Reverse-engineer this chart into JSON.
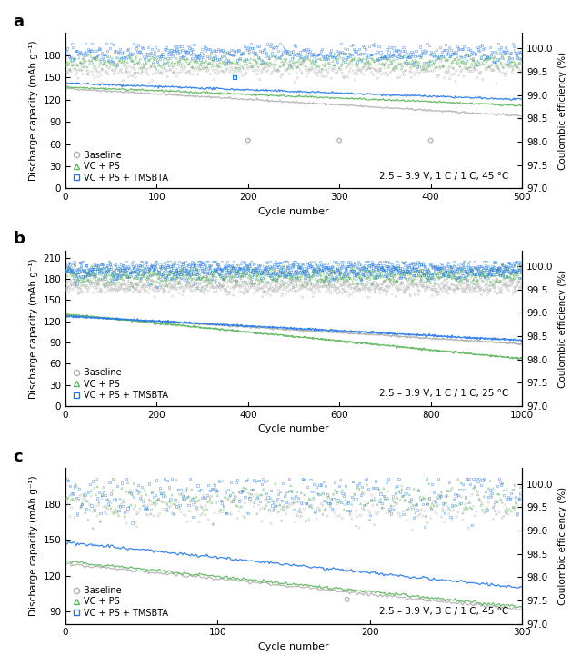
{
  "panel_a": {
    "title": "a",
    "xlim": [
      0,
      500
    ],
    "xticks": [
      0,
      100,
      200,
      300,
      400,
      500
    ],
    "ylim_left": [
      0,
      210
    ],
    "yticks_left": [
      0,
      30,
      60,
      90,
      120,
      150,
      180
    ],
    "ylim_right": [
      97.0,
      100.333
    ],
    "yticks_right": [
      97.0,
      97.5,
      98.0,
      98.5,
      99.0,
      99.5,
      100.0
    ],
    "annotation": "2.5 – 3.9 V, 1 C / 1 C, 45 °C",
    "n_cycles": 500,
    "cap_baseline_start": 135,
    "cap_baseline_end": 98,
    "cap_vcps_start": 137,
    "cap_vcps_end": 112,
    "cap_tmsbta_start": 142,
    "cap_tmsbta_end": 120,
    "ce_baseline_mean": 99.55,
    "ce_baseline_noise": 0.1,
    "ce_vcps_mean": 99.72,
    "ce_vcps_noise": 0.09,
    "ce_tmsbta_mean": 99.9,
    "ce_tmsbta_noise": 0.1,
    "ce_baseline_outlier_cycles": [
      200,
      300,
      400
    ],
    "ce_baseline_outlier_vals": [
      98.03,
      98.03,
      98.03
    ],
    "ce_tmsbta_outlier_cycles": [
      75,
      185
    ],
    "ce_tmsbta_outlier_vals": [
      99.48,
      99.38
    ]
  },
  "panel_b": {
    "title": "b",
    "xlim": [
      0,
      1000
    ],
    "xticks": [
      0,
      200,
      400,
      600,
      800,
      1000
    ],
    "ylim_left": [
      0,
      220
    ],
    "yticks_left": [
      0,
      30,
      60,
      90,
      120,
      150,
      180,
      210
    ],
    "ylim_right": [
      97.0,
      100.333
    ],
    "yticks_right": [
      97.0,
      97.5,
      98.0,
      98.5,
      99.0,
      99.5,
      100.0
    ],
    "annotation": "2.5 – 3.9 V, 1 C / 1 C, 25 °C",
    "n_cycles": 1000,
    "cap_baseline_start": 128,
    "cap_baseline_end": 88,
    "cap_vcps_start": 130,
    "cap_vcps_end": 67,
    "cap_tmsbta_start": 127,
    "cap_tmsbta_end": 93,
    "ce_baseline_mean": 99.58,
    "ce_baseline_noise": 0.09,
    "ce_vcps_mean": 99.82,
    "ce_vcps_noise": 0.1,
    "ce_tmsbta_mean": 99.93,
    "ce_tmsbta_noise": 0.1,
    "ce_baseline_outlier_cycles": [
      30,
      60
    ],
    "ce_baseline_outlier_vals": [
      99.43,
      99.43
    ],
    "ce_tmsbta_outlier_cycles": [],
    "ce_tmsbta_outlier_vals": []
  },
  "panel_c": {
    "title": "c",
    "xlim": [
      0,
      300
    ],
    "xticks": [
      0,
      100,
      200,
      300
    ],
    "ylim_left": [
      80,
      210
    ],
    "yticks_left": [
      90,
      120,
      150,
      180
    ],
    "ylim_right": [
      97.0,
      100.333
    ],
    "yticks_right": [
      97.0,
      97.5,
      98.0,
      98.5,
      99.0,
      99.5,
      100.0
    ],
    "annotation": "2.5 – 3.9 V, 3 C / 1 C, 45 °C",
    "n_cycles": 300,
    "cap_baseline_start": 130,
    "cap_baseline_end": 92,
    "cap_vcps_start": 132,
    "cap_vcps_end": 94,
    "cap_tmsbta_start": 148,
    "cap_tmsbta_end": 110,
    "ce_baseline_mean": 99.5,
    "ce_baseline_noise": 0.18,
    "ce_vcps_mean": 99.65,
    "ce_vcps_noise": 0.22,
    "ce_tmsbta_mean": 99.78,
    "ce_tmsbta_noise": 0.22,
    "ce_baseline_outlier_cycles": [
      185
    ],
    "ce_baseline_outlier_vals": [
      97.52
    ],
    "ce_tmsbta_outlier_cycles": [],
    "ce_tmsbta_outlier_vals": []
  },
  "colors": {
    "baseline": "#b0b0b0",
    "vcps": "#5ab55a",
    "tmsbta": "#2277ee"
  },
  "legend_labels": [
    "Baseline",
    "VC + PS",
    "VC + PS + TMSBTA"
  ],
  "xlabel": "Cycle number",
  "ylabel_left": "Discharge capacity (mAh g⁻¹)",
  "ylabel_right": "Coulombic efficiency (%)"
}
